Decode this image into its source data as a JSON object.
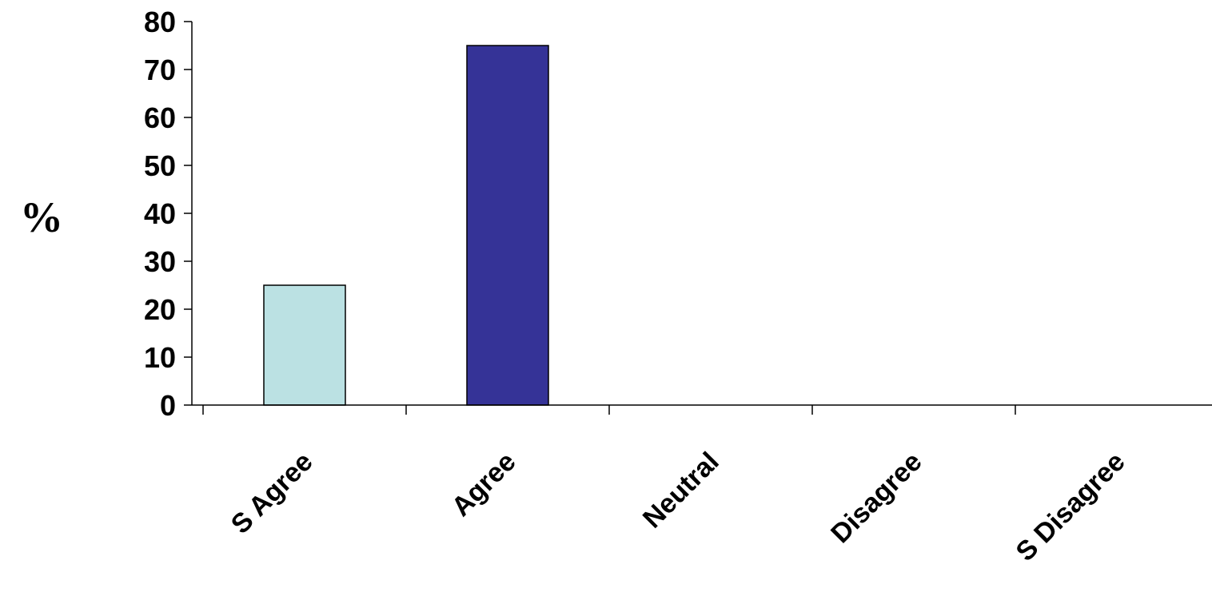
{
  "chart_data": {
    "type": "bar",
    "title": "",
    "xlabel": "",
    "ylabel": "%",
    "ylim": [
      0,
      80
    ],
    "yticks": [
      0,
      10,
      20,
      30,
      40,
      50,
      60,
      70,
      80
    ],
    "categories": [
      "S Agree",
      "Agree",
      "Neutral",
      "Disagree",
      "S Disagree"
    ],
    "values": [
      25,
      75,
      0,
      0,
      0
    ],
    "bar_colors": [
      "#BBE1E3",
      "#353397",
      "#353397",
      "#353397",
      "#353397"
    ],
    "grid": false,
    "legend": "none"
  }
}
